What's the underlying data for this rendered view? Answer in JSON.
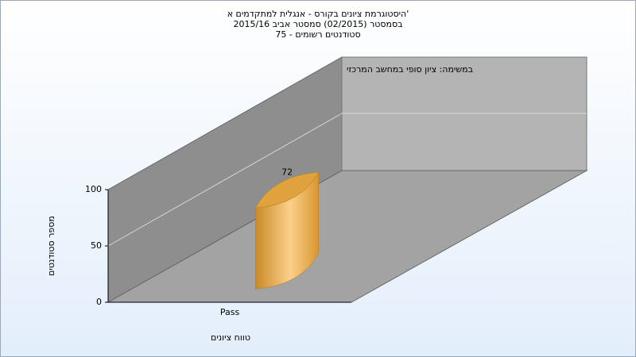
{
  "chart_data": {
    "type": "bar3d",
    "title": [
      "היסטוגרמת ציונים בקורס - אנגלית למתקדמים א'",
      "בסמסטר  (02/2015)  סמסטר אביב 2015/16",
      "סטודנטים רשומים - 75"
    ],
    "subtitle": "במשימה: ציון סופי במחשב המרכזי",
    "y_label": "מספר סטודנטים",
    "x_label": "טווח ציונים",
    "categories": [
      "Pass"
    ],
    "values": [
      72
    ],
    "color": "#f2b84f",
    "ylim": [
      0,
      100
    ],
    "yticks": [
      0,
      50,
      100
    ],
    "grid": true
  }
}
